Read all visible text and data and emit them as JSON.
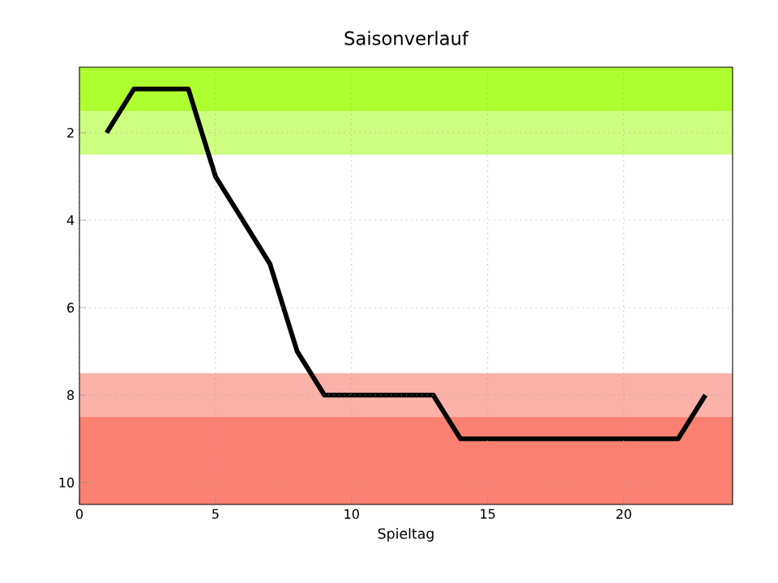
{
  "chart_data": {
    "type": "line",
    "title": "Saisonverlauf",
    "xlabel": "Spieltag",
    "x": [
      1,
      2,
      3,
      4,
      5,
      6,
      7,
      8,
      9,
      10,
      11,
      12,
      13,
      14,
      15,
      16,
      17,
      18,
      19,
      20,
      21,
      22,
      23
    ],
    "series": [
      {
        "color": "#000000",
        "values": [
          2,
          1,
          1,
          1,
          3,
          4,
          5,
          7,
          8,
          8,
          8,
          8,
          8,
          9,
          9,
          9,
          9,
          9,
          9,
          9,
          9,
          9,
          8
        ]
      }
    ],
    "xlim": [
      0,
      24
    ],
    "xticks": [
      0,
      5,
      10,
      15,
      20
    ],
    "ylim": [
      10.5,
      0.5
    ],
    "yticks": [
      2,
      4,
      6,
      8,
      10
    ],
    "grid": true,
    "marker": "none",
    "line_style": "solid",
    "bands": [
      {
        "axis": "y",
        "from": 0.5,
        "to": 1.5,
        "color": "#adff2f"
      },
      {
        "axis": "y",
        "from": 1.5,
        "to": 2.5,
        "color": "#cdff80"
      },
      {
        "axis": "y",
        "from": 7.5,
        "to": 8.5,
        "color": "#fbb2a8"
      },
      {
        "axis": "y",
        "from": 8.5,
        "to": 10.5,
        "color": "#fa8072"
      }
    ]
  }
}
